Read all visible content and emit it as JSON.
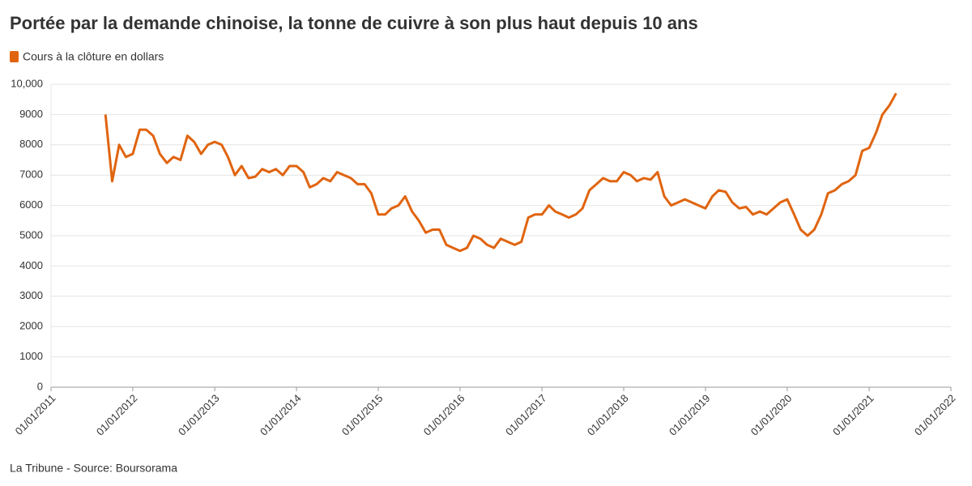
{
  "chart_data": {
    "type": "line",
    "title": "Portée par la demande chinoise, la tonne de cuivre à son plus haut depuis 10 ans",
    "source": "La Tribune - Source: Boursorama",
    "legend": "top-left",
    "grid": true,
    "ylim": [
      0,
      10000
    ],
    "yticks": [
      0,
      1000,
      2000,
      3000,
      4000,
      5000,
      6000,
      7000,
      8000,
      9000,
      {
        "value": 10000,
        "label": "10,000"
      }
    ],
    "xlim": [
      "2011-01-01",
      "2022-01-01"
    ],
    "xticks": [
      {
        "value": "2011-01-01",
        "label": "01/01/2011"
      },
      {
        "value": "2012-01-01",
        "label": "01/01/2012"
      },
      {
        "value": "2013-01-01",
        "label": "01/01/2013"
      },
      {
        "value": "2014-01-01",
        "label": "01/01/2014"
      },
      {
        "value": "2015-01-01",
        "label": "01/01/2015"
      },
      {
        "value": "2016-01-01",
        "label": "01/01/2016"
      },
      {
        "value": "2017-01-01",
        "label": "01/01/2017"
      },
      {
        "value": "2018-01-01",
        "label": "01/01/2018"
      },
      {
        "value": "2019-01-01",
        "label": "01/01/2019"
      },
      {
        "value": "2020-01-01",
        "label": "01/01/2020"
      },
      {
        "value": "2021-01-01",
        "label": "01/01/2021"
      },
      {
        "value": "2022-01-01",
        "label": "01/01/2022"
      }
    ],
    "x": [
      "2011-09-01",
      "2011-10-01",
      "2011-11-01",
      "2011-12-01",
      "2012-01-01",
      "2012-02-01",
      "2012-03-01",
      "2012-04-01",
      "2012-05-01",
      "2012-06-01",
      "2012-07-01",
      "2012-08-01",
      "2012-09-01",
      "2012-10-01",
      "2012-11-01",
      "2012-12-01",
      "2013-01-01",
      "2013-02-01",
      "2013-03-01",
      "2013-04-01",
      "2013-05-01",
      "2013-06-01",
      "2013-07-01",
      "2013-08-01",
      "2013-09-01",
      "2013-10-01",
      "2013-11-01",
      "2013-12-01",
      "2014-01-01",
      "2014-02-01",
      "2014-03-01",
      "2014-04-01",
      "2014-05-01",
      "2014-06-01",
      "2014-07-01",
      "2014-08-01",
      "2014-09-01",
      "2014-10-01",
      "2014-11-01",
      "2014-12-01",
      "2015-01-01",
      "2015-02-01",
      "2015-03-01",
      "2015-04-01",
      "2015-05-01",
      "2015-06-01",
      "2015-07-01",
      "2015-08-01",
      "2015-09-01",
      "2015-10-01",
      "2015-11-01",
      "2015-12-01",
      "2016-01-01",
      "2016-02-01",
      "2016-03-01",
      "2016-04-01",
      "2016-05-01",
      "2016-06-01",
      "2016-07-01",
      "2016-08-01",
      "2016-09-01",
      "2016-10-01",
      "2016-11-01",
      "2016-12-01",
      "2017-01-01",
      "2017-02-01",
      "2017-03-01",
      "2017-04-01",
      "2017-05-01",
      "2017-06-01",
      "2017-07-01",
      "2017-08-01",
      "2017-09-01",
      "2017-10-01",
      "2017-11-01",
      "2017-12-01",
      "2018-01-01",
      "2018-02-01",
      "2018-03-01",
      "2018-04-01",
      "2018-05-01",
      "2018-06-01",
      "2018-07-01",
      "2018-08-01",
      "2018-09-01",
      "2018-10-01",
      "2018-11-01",
      "2018-12-01",
      "2019-01-01",
      "2019-02-01",
      "2019-03-01",
      "2019-04-01",
      "2019-05-01",
      "2019-06-01",
      "2019-07-01",
      "2019-08-01",
      "2019-09-01",
      "2019-10-01",
      "2019-11-01",
      "2019-12-01",
      "2020-01-01",
      "2020-02-01",
      "2020-03-01",
      "2020-04-01",
      "2020-05-01",
      "2020-06-01",
      "2020-07-01",
      "2020-08-01",
      "2020-09-01",
      "2020-10-01",
      "2020-11-01",
      "2020-12-01",
      "2021-01-01",
      "2021-02-01",
      "2021-03-01",
      "2021-04-01",
      "2021-05-01"
    ],
    "series": [
      {
        "name": "Cours à la clôture en dollars",
        "color": "#e0640f",
        "values": [
          9000,
          6800,
          8000,
          7600,
          7700,
          8500,
          8500,
          8300,
          7700,
          7400,
          7600,
          7500,
          8300,
          8100,
          7700,
          8000,
          8100,
          8000,
          7600,
          7000,
          7300,
          6900,
          6950,
          7200,
          7100,
          7200,
          7000,
          7300,
          7300,
          7100,
          6600,
          6700,
          6900,
          6800,
          7100,
          7000,
          6900,
          6700,
          6700,
          6400,
          5700,
          5700,
          5900,
          6000,
          6300,
          5800,
          5500,
          5100,
          5200,
          5200,
          4700,
          4600,
          4500,
          4600,
          5000,
          4900,
          4700,
          4600,
          4900,
          4800,
          4700,
          4800,
          5600,
          5700,
          5700,
          6000,
          5800,
          5700,
          5600,
          5700,
          5900,
          6500,
          6700,
          6900,
          6800,
          6800,
          7100,
          7000,
          6800,
          6900,
          6850,
          7100,
          6300,
          6000,
          6100,
          6200,
          6100,
          6000,
          5900,
          6300,
          6500,
          6450,
          6100,
          5900,
          5950,
          5700,
          5800,
          5700,
          5900,
          6100,
          6200,
          5700,
          5200,
          5000,
          5200,
          5700,
          6400,
          6500,
          6700,
          6800,
          7000,
          7800,
          7900,
          8400,
          9000,
          9300,
          9700
        ]
      }
    ]
  }
}
